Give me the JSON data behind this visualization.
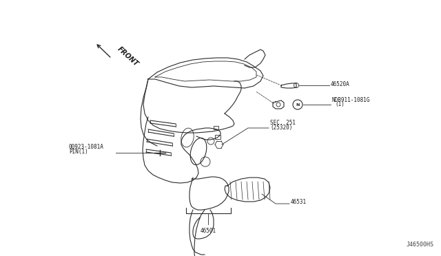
{
  "bg_color": "#ffffff",
  "fig_width": 6.4,
  "fig_height": 3.72,
  "dpi": 100,
  "diagram_id": "J46500HS",
  "line_color": "#2a2a2a",
  "light_line_color": "#555555",
  "text_color": "#1a1a1a",
  "annotations": {
    "front_text": "FRONT",
    "part_46520A": "46520A",
    "part_NDB911_line1": "NDB911-1081G",
    "part_NDB911_line2": "(1)",
    "part_SEC251_line1": "SEC. 251",
    "part_SEC251_line2": "(25320)",
    "part_00923_line1": "00923-1081A",
    "part_00923_line2": "PIN(1)",
    "part_46531": "46531",
    "part_46501": "46501"
  },
  "font_size_labels": 5.5,
  "font_size_id": 6.0
}
